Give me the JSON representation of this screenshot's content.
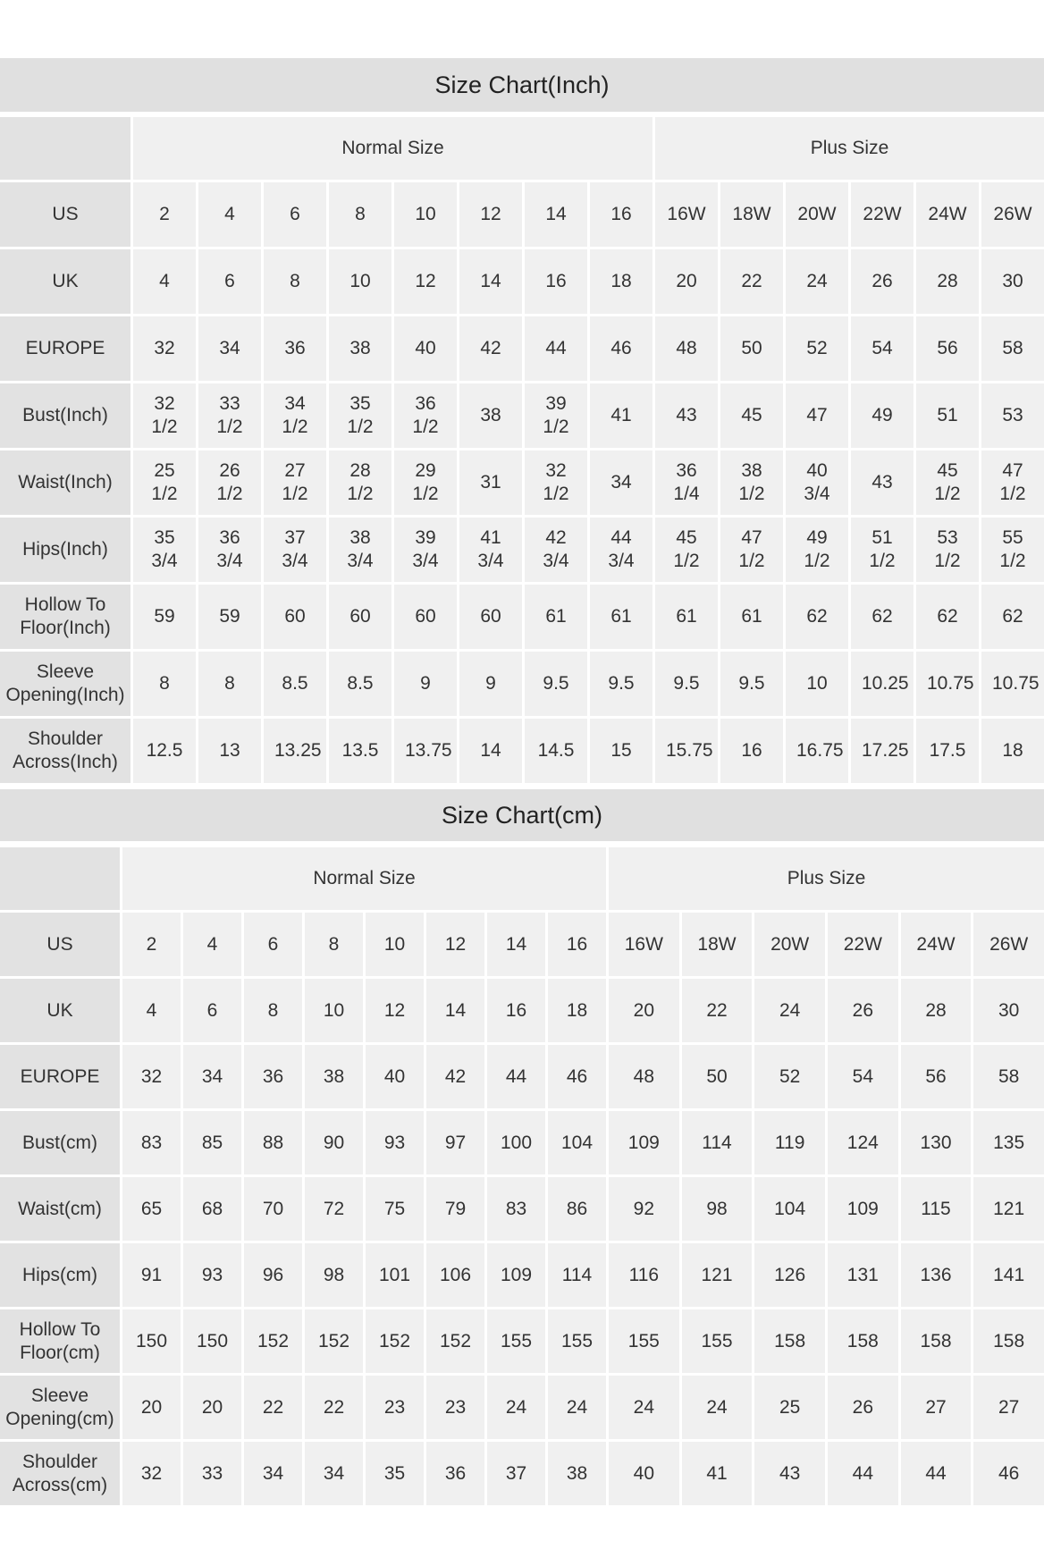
{
  "inch_chart": {
    "title": "Size Chart(Inch)",
    "groups": [
      "Normal Size",
      "Plus Size"
    ],
    "rows": [
      {
        "label": "US",
        "values": [
          "2",
          "4",
          "6",
          "8",
          "10",
          "12",
          "14",
          "16",
          "16W",
          "18W",
          "20W",
          "22W",
          "24W",
          "26W"
        ]
      },
      {
        "label": "UK",
        "values": [
          "4",
          "6",
          "8",
          "10",
          "12",
          "14",
          "16",
          "18",
          "20",
          "22",
          "24",
          "26",
          "28",
          "30"
        ]
      },
      {
        "label": "EUROPE",
        "values": [
          "32",
          "34",
          "36",
          "38",
          "40",
          "42",
          "44",
          "46",
          "48",
          "50",
          "52",
          "54",
          "56",
          "58"
        ]
      },
      {
        "label": "Bust(Inch)",
        "values": [
          "32 1/2",
          "33 1/2",
          "34 1/2",
          "35 1/2",
          "36 1/2",
          "38",
          "39 1/2",
          "41",
          "43",
          "45",
          "47",
          "49",
          "51",
          "53"
        ]
      },
      {
        "label": "Waist(Inch)",
        "values": [
          "25 1/2",
          "26 1/2",
          "27 1/2",
          "28 1/2",
          "29 1/2",
          "31",
          "32 1/2",
          "34",
          "36 1/4",
          "38 1/2",
          "40 3/4",
          "43",
          "45 1/2",
          "47 1/2"
        ]
      },
      {
        "label": "Hips(Inch)",
        "values": [
          "35 3/4",
          "36 3/4",
          "37 3/4",
          "38 3/4",
          "39 3/4",
          "41 3/4",
          "42 3/4",
          "44 3/4",
          "45 1/2",
          "47 1/2",
          "49 1/2",
          "51 1/2",
          "53 1/2",
          "55 1/2"
        ]
      },
      {
        "label": "Hollow To Floor(Inch)",
        "values": [
          "59",
          "59",
          "60",
          "60",
          "60",
          "60",
          "61",
          "61",
          "61",
          "61",
          "62",
          "62",
          "62",
          "62"
        ]
      },
      {
        "label": "Sleeve Opening(Inch)",
        "values": [
          "8",
          "8",
          "8.5",
          "8.5",
          "9",
          "9",
          "9.5",
          "9.5",
          "9.5",
          "9.5",
          "10",
          "10.25",
          "10.75",
          "10.75"
        ]
      },
      {
        "label": "Shoulder Across(Inch)",
        "values": [
          "12.5",
          "13",
          "13.25",
          "13.5",
          "13.75",
          "14",
          "14.5",
          "15",
          "15.75",
          "16",
          "16.75",
          "17.25",
          "17.5",
          "18"
        ]
      }
    ]
  },
  "cm_chart": {
    "title": "Size Chart(cm)",
    "groups": [
      "Normal Size",
      "Plus Size"
    ],
    "rows": [
      {
        "label": "US",
        "values": [
          "2",
          "4",
          "6",
          "8",
          "10",
          "12",
          "14",
          "16",
          "16W",
          "18W",
          "20W",
          "22W",
          "24W",
          "26W"
        ]
      },
      {
        "label": "UK",
        "values": [
          "4",
          "6",
          "8",
          "10",
          "12",
          "14",
          "16",
          "18",
          "20",
          "22",
          "24",
          "26",
          "28",
          "30"
        ]
      },
      {
        "label": "EUROPE",
        "values": [
          "32",
          "34",
          "36",
          "38",
          "40",
          "42",
          "44",
          "46",
          "48",
          "50",
          "52",
          "54",
          "56",
          "58"
        ]
      },
      {
        "label": "Bust(cm)",
        "values": [
          "83",
          "85",
          "88",
          "90",
          "93",
          "97",
          "100",
          "104",
          "109",
          "114",
          "119",
          "124",
          "130",
          "135"
        ]
      },
      {
        "label": "Waist(cm)",
        "values": [
          "65",
          "68",
          "70",
          "72",
          "75",
          "79",
          "83",
          "86",
          "92",
          "98",
          "104",
          "109",
          "115",
          "121"
        ]
      },
      {
        "label": "Hips(cm)",
        "values": [
          "91",
          "93",
          "96",
          "98",
          "101",
          "106",
          "109",
          "114",
          "116",
          "121",
          "126",
          "131",
          "136",
          "141"
        ]
      },
      {
        "label": "Hollow To Floor(cm)",
        "values": [
          "150",
          "150",
          "152",
          "152",
          "152",
          "152",
          "155",
          "155",
          "155",
          "155",
          "158",
          "158",
          "158",
          "158"
        ]
      },
      {
        "label": "Sleeve Opening(cm)",
        "values": [
          "20",
          "20",
          "22",
          "22",
          "23",
          "23",
          "24",
          "24",
          "24",
          "24",
          "25",
          "26",
          "27",
          "27"
        ]
      },
      {
        "label": "Shoulder Across(cm)",
        "values": [
          "32",
          "33",
          "34",
          "34",
          "35",
          "36",
          "37",
          "38",
          "40",
          "41",
          "43",
          "44",
          "44",
          "46"
        ]
      }
    ]
  }
}
